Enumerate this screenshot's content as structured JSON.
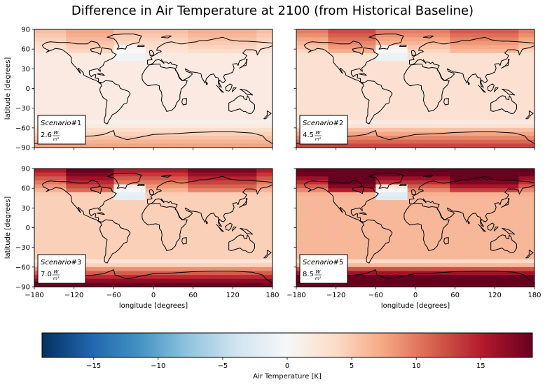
{
  "chart_data": {
    "type": "heatmap",
    "title": "Difference in Air Temperature at 2100 (from Historical Baseline)",
    "xlabel": "longitude [degrees]",
    "ylabel": "latitude [degrees]",
    "xlim": [
      -180,
      180
    ],
    "ylim": [
      -90,
      90
    ],
    "xticks": [
      "−180",
      "−120",
      "−60",
      "0",
      "60",
      "120",
      "180"
    ],
    "yticks": [
      "90",
      "60",
      "30",
      "0",
      "−30",
      "−60",
      "−90"
    ],
    "colormap": "RdBu_r",
    "colorbar": {
      "label": "Air Temperature [K]",
      "range": [
        -19,
        19
      ],
      "ticks": [
        "−15",
        "−10",
        "−5",
        "0",
        "5",
        "10",
        "15"
      ]
    },
    "panels": [
      {
        "scenario_label": "Scenario#1",
        "scenario_word": "Scenario",
        "scenario_num": "#1",
        "forcing": "2.6",
        "unit_num": "W",
        "unit_den": "m²",
        "warming_scale": 0.25
      },
      {
        "scenario_label": "Scenario#2",
        "scenario_word": "Scenario",
        "scenario_num": "#2",
        "forcing": "4.5",
        "unit_num": "W",
        "unit_den": "m²",
        "warming_scale": 0.42
      },
      {
        "scenario_label": "Scenario#3",
        "scenario_word": "Scenario",
        "scenario_num": "#3",
        "forcing": "7.0",
        "unit_num": "W",
        "unit_den": "m²",
        "warming_scale": 0.65
      },
      {
        "scenario_label": "Scenario#5",
        "scenario_word": "Scenario",
        "scenario_num": "#5",
        "forcing": "8.5",
        "unit_num": "W",
        "unit_den": "m²",
        "warming_scale": 0.9
      }
    ]
  }
}
